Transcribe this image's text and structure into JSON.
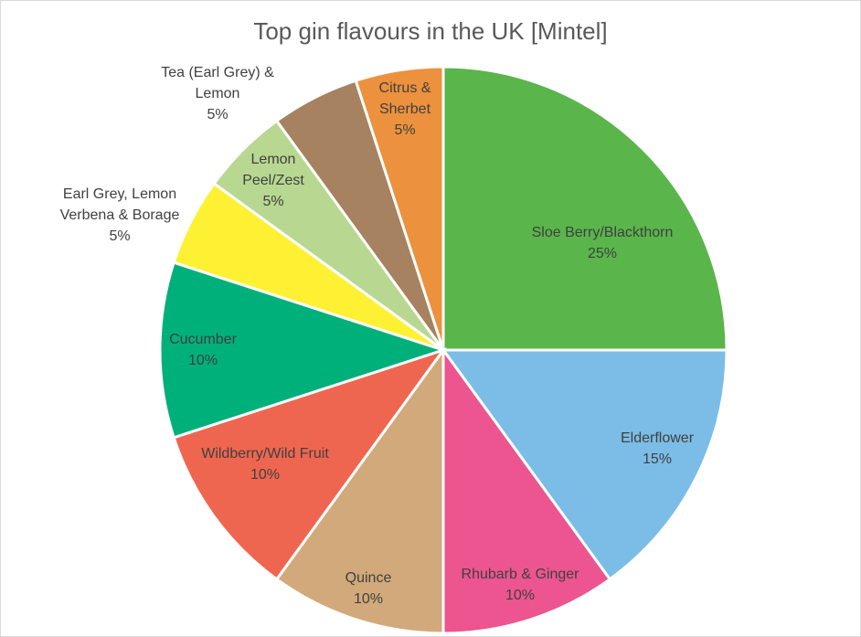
{
  "chart_data": {
    "type": "pie",
    "title": "Top gin flavours in the UK [Mintel]",
    "value_suffix": "%",
    "slices": [
      {
        "label": "Sloe Berry/Blackthorn",
        "value": 25,
        "color": "#5ab54b"
      },
      {
        "label": "Elderflower",
        "value": 15,
        "color": "#7bbde6"
      },
      {
        "label": "Rhubarb & Ginger",
        "value": 10,
        "color": "#ec5590"
      },
      {
        "label": "Quince",
        "value": 10,
        "color": "#d1a97a"
      },
      {
        "label": "Wildberry/Wild Fruit",
        "value": 10,
        "color": "#ef6650"
      },
      {
        "label": "Cucumber",
        "value": 10,
        "color": "#00b07a"
      },
      {
        "label": "Earl Grey, Lemon Verbena & Borage",
        "value": 5,
        "color": "#fef133"
      },
      {
        "label": "Lemon Peel/Zest",
        "value": 5,
        "color": "#b8d891"
      },
      {
        "label": "Tea (Earl Grey) & Lemon",
        "value": 5,
        "color": "#a68260"
      },
      {
        "label": "Citrus & Sherbet",
        "value": 5,
        "color": "#ec913d"
      }
    ]
  }
}
